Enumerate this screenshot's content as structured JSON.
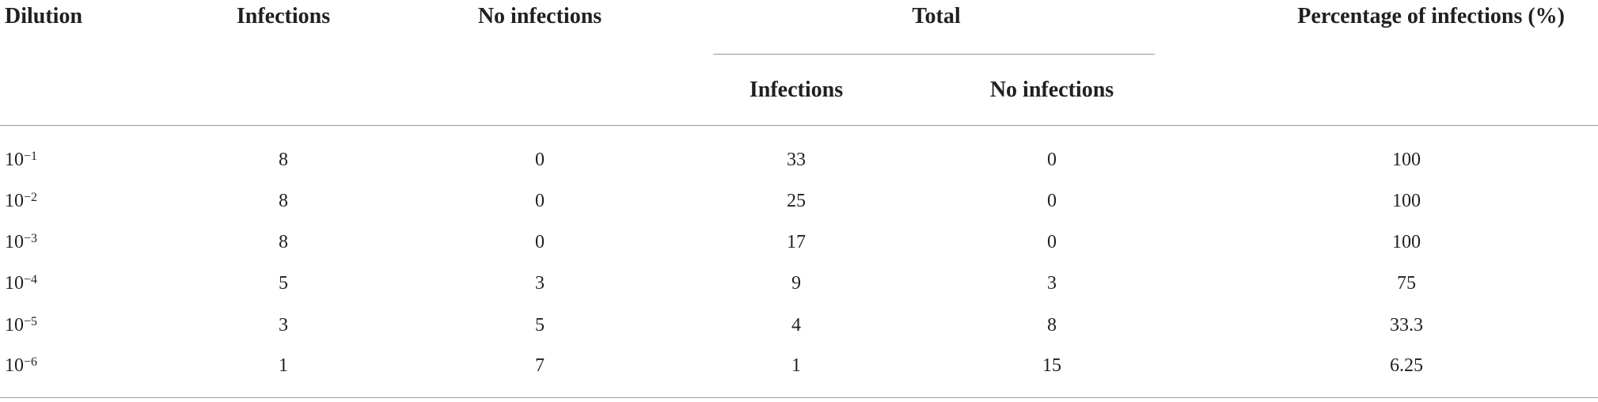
{
  "table": {
    "columns": [
      "Dilution",
      "Infections",
      "No infections"
    ],
    "group": {
      "label": "Total",
      "subcolumns": [
        "Infections",
        "No infections"
      ]
    },
    "last_column": "Percentage of infections (%)",
    "rows": [
      [
        {
          "base": "10",
          "exponent": "−1"
        },
        8,
        0,
        33,
        0,
        100
      ],
      [
        {
          "base": "10",
          "exponent": "−2"
        },
        8,
        0,
        25,
        0,
        100
      ],
      [
        {
          "base": "10",
          "exponent": "−3"
        },
        8,
        0,
        17,
        0,
        100
      ],
      [
        {
          "base": "10",
          "exponent": "−4"
        },
        5,
        3,
        9,
        3,
        75
      ],
      [
        {
          "base": "10",
          "exponent": "−5"
        },
        3,
        5,
        4,
        8,
        33.3
      ],
      [
        {
          "base": "10",
          "exponent": "−6"
        },
        1,
        7,
        1,
        15,
        6.25
      ]
    ]
  }
}
